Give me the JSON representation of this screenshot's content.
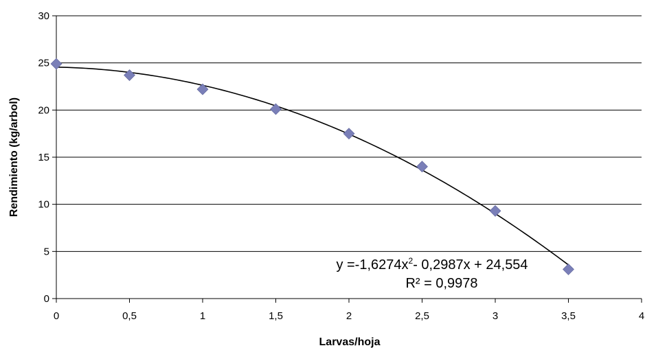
{
  "chart_data": {
    "type": "scatter",
    "title": "",
    "xlabel": "Larvas/hoja",
    "ylabel": "Rendimiento (kg/arbol)",
    "xlim": [
      0,
      4
    ],
    "ylim": [
      0,
      30
    ],
    "x_ticks": [
      0,
      0.5,
      1,
      1.5,
      2,
      2.5,
      3,
      3.5,
      4
    ],
    "x_tick_labels": [
      "0",
      "0,5",
      "1",
      "1,5",
      "2",
      "2,5",
      "3",
      "3,5",
      "4"
    ],
    "y_ticks": [
      0,
      5,
      10,
      15,
      20,
      25,
      30
    ],
    "y_tick_labels": [
      "0",
      "5",
      "10",
      "15",
      "20",
      "25",
      "30"
    ],
    "grid": "horizontal",
    "series": [
      {
        "marker": "diamond",
        "color": "#7a7fb8",
        "x": [
          0,
          0.5,
          1,
          1.5,
          2,
          2.5,
          3,
          3.5
        ],
        "y": [
          24.9,
          23.7,
          22.2,
          20.1,
          17.5,
          14.0,
          9.3,
          3.1
        ]
      }
    ],
    "trendline": {
      "type": "polynomial",
      "coefficients": {
        "a": -1.6274,
        "b": -0.2987,
        "c": 24.554
      },
      "r_squared": 0.9978,
      "color": "#000000",
      "equation_parts": {
        "prefix": "y =-1,6274x",
        "exponent": "2",
        "suffix": "- 0,2987x + 24,554"
      },
      "r2_label": "R² = 0,9978"
    }
  }
}
